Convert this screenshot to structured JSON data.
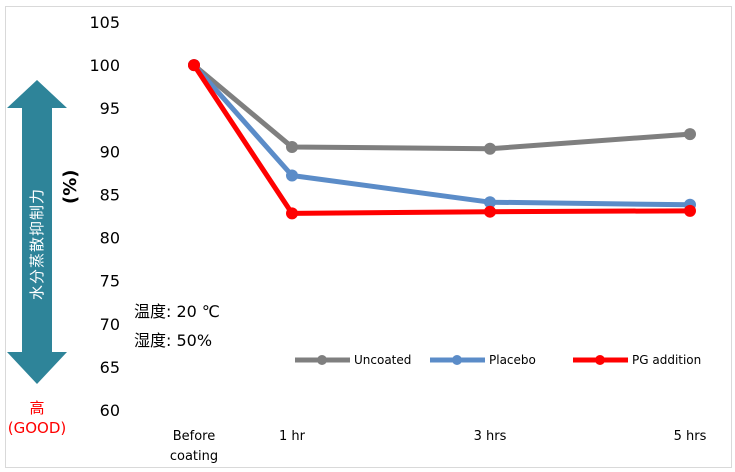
{
  "chart_data": {
    "type": "line",
    "categories": [
      "Before coating",
      "1 hr",
      "3 hrs",
      "5 hrs"
    ],
    "ylabel": "(%)",
    "ylim": [
      60,
      105
    ],
    "yticks": [
      60,
      65,
      70,
      75,
      80,
      85,
      90,
      95,
      100,
      105
    ],
    "grid": false,
    "legend_position": "bottom-right",
    "series": [
      {
        "name": "Uncoated",
        "values": [
          100,
          90.5,
          90.3,
          92
        ],
        "color": "#7f7f7f"
      },
      {
        "name": "Placebo",
        "values": [
          100,
          87.2,
          84.1,
          83.8
        ],
        "color": "#5b8cc8"
      },
      {
        "name": "PG addition",
        "values": [
          100,
          82.8,
          83.0,
          83.1
        ],
        "color": "#ff0000"
      }
    ]
  },
  "annotations": {
    "arrow_label": "水分蒸散抑制力",
    "arrow_color": "#2e8499",
    "high_label": "高",
    "good_label": "(GOOD)",
    "temperature": "温度: 20 ℃",
    "humidity": "湿度: 50%"
  }
}
